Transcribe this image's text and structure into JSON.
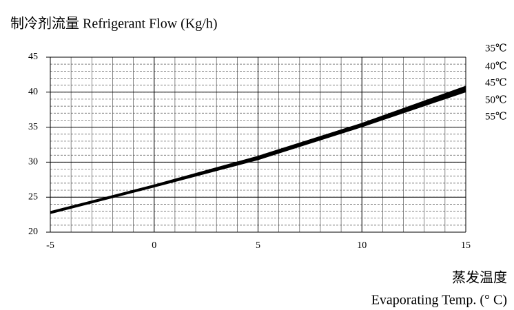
{
  "chart_data": {
    "type": "line",
    "title": "制冷剂流量 Refrigerant Flow  (Kg/h)",
    "xlabel": [
      "蒸发温度",
      "Evaporating Temp. (° C)"
    ],
    "x": [
      -5,
      0,
      5,
      10,
      15
    ],
    "series": [
      {
        "name": "35℃",
        "color": "#000000",
        "values": [
          22.9,
          26.7,
          30.8,
          35.5,
          40.8
        ]
      },
      {
        "name": "40℃",
        "color": "#000000",
        "values": [
          22.85,
          26.65,
          30.7,
          35.4,
          40.6
        ]
      },
      {
        "name": "45℃",
        "color": "#000000",
        "values": [
          22.8,
          26.6,
          30.6,
          35.3,
          40.4
        ]
      },
      {
        "name": "50℃",
        "color": "#000000",
        "values": [
          22.75,
          26.55,
          30.5,
          35.2,
          40.25
        ]
      },
      {
        "name": "55℃",
        "color": "#000000",
        "values": [
          22.7,
          26.5,
          30.4,
          35.1,
          40.1
        ]
      }
    ],
    "xlim": [
      -5,
      15
    ],
    "xticks": [
      -5,
      0,
      5,
      10,
      15
    ],
    "ylim": [
      20,
      45
    ],
    "yticks": [
      20,
      25,
      30,
      35,
      40,
      45
    ],
    "grid": true,
    "minor_grid_step": 1
  }
}
